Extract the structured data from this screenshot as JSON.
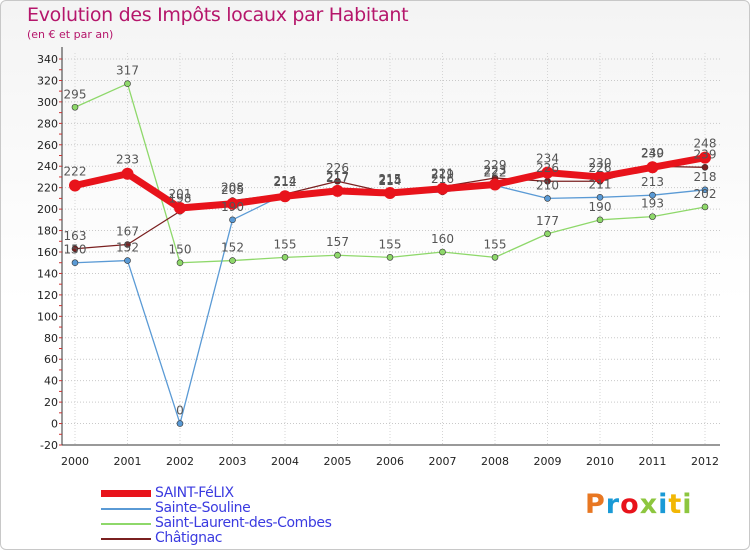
{
  "chart_data": {
    "type": "line",
    "title": "Evolution des Impôts locaux par Habitant",
    "subtitle": "(en € et par an)",
    "categories": [
      "2000",
      "2001",
      "2002",
      "2003",
      "2004",
      "2005",
      "2006",
      "2007",
      "2008",
      "2009",
      "2010",
      "2011",
      "2012"
    ],
    "y_ticks": [
      -20,
      0,
      20,
      40,
      60,
      80,
      100,
      120,
      140,
      160,
      180,
      200,
      220,
      240,
      260,
      280,
      300,
      320,
      340
    ],
    "ylim": [
      -20,
      340
    ],
    "series": [
      {
        "name": "SAINT-FéLIX",
        "color": "#e8131b",
        "values": [
          222,
          233,
          201,
          205,
          212,
          217,
          215,
          219,
          223,
          234,
          230,
          239,
          248
        ]
      },
      {
        "name": "Sainte-Souline",
        "color": "#5a9ad5",
        "values": [
          150,
          152,
          0,
          190,
          214,
          217,
          214,
          216,
          222,
          210,
          211,
          213,
          218
        ]
      },
      {
        "name": "Saint-Laurent-des-Combes",
        "color": "#8ed86a",
        "values": [
          295,
          317,
          150,
          152,
          155,
          157,
          155,
          160,
          155,
          177,
          190,
          193,
          202
        ]
      },
      {
        "name": "Châtignac",
        "color": "#7a2020",
        "values": [
          163,
          167,
          198,
          208,
          214,
          226,
          215,
          221,
          229,
          226,
          226,
          240,
          239
        ]
      }
    ]
  },
  "logo": {
    "text": "Proxiti",
    "colors": [
      "#e87722",
      "#1a9ad6",
      "#e8131b",
      "#8dc63f",
      "#1a9ad6",
      "#f2b705",
      "#8dc63f"
    ]
  }
}
